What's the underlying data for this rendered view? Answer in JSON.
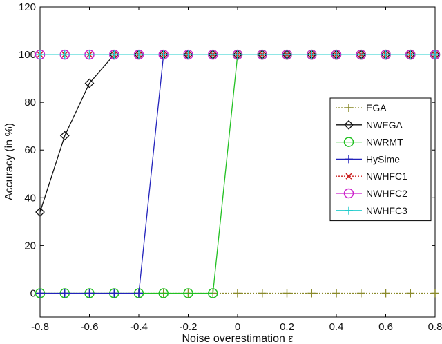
{
  "chart_data": {
    "type": "line",
    "title": "",
    "xlabel": "Noise overestimation ε",
    "ylabel": "Accuracy (in %)",
    "xlim": [
      -0.8,
      0.8
    ],
    "ylim": [
      -10,
      120
    ],
    "xticks": [
      "-0.8",
      "-0.6",
      "-0.4",
      "-0.2",
      "0",
      "0.2",
      "0.4",
      "0.6",
      "0.8"
    ],
    "yticks": [
      "0",
      "20",
      "40",
      "60",
      "80",
      "100",
      "120"
    ],
    "xtick_values": [
      -0.8,
      -0.6,
      -0.4,
      -0.2,
      0,
      0.2,
      0.4,
      0.6,
      0.8
    ],
    "ytick_values": [
      0,
      20,
      40,
      60,
      80,
      100,
      120
    ],
    "grid": false,
    "legend_position": "right",
    "x": [
      -0.8,
      -0.7,
      -0.6,
      -0.5,
      -0.4,
      -0.3,
      -0.2,
      -0.1,
      0,
      0.1,
      0.2,
      0.3,
      0.4,
      0.5,
      0.6,
      0.7,
      0.8
    ],
    "series": [
      {
        "name": "EGA",
        "color": "#8a8a2a",
        "dash": "2,2",
        "marker": "plus",
        "values": [
          0,
          0,
          0,
          0,
          0,
          0,
          0,
          0,
          0,
          0,
          0,
          0,
          0,
          0,
          0,
          0,
          0
        ]
      },
      {
        "name": "NWEGA",
        "color": "#111111",
        "dash": "",
        "marker": "diamond",
        "values": [
          34,
          66,
          88,
          100,
          100,
          100,
          100,
          100,
          100,
          100,
          100,
          100,
          100,
          100,
          100,
          100,
          100
        ]
      },
      {
        "name": "NWRMT",
        "color": "#22c022",
        "dash": "",
        "marker": "circle",
        "values": [
          0,
          0,
          0,
          0,
          0,
          0,
          0,
          0,
          100,
          100,
          100,
          100,
          100,
          100,
          100,
          100,
          100
        ]
      },
      {
        "name": "HySime",
        "color": "#2222bb",
        "dash": "",
        "marker": "plus",
        "values": [
          0,
          0,
          0,
          0,
          0,
          100,
          100,
          100,
          100,
          100,
          100,
          100,
          100,
          100,
          100,
          100,
          100
        ]
      },
      {
        "name": "NWHFC1",
        "color": "#cc2222",
        "dash": "2,2",
        "marker": "x",
        "values": [
          100,
          100,
          100,
          100,
          100,
          100,
          100,
          100,
          100,
          100,
          100,
          100,
          100,
          100,
          100,
          100,
          100
        ]
      },
      {
        "name": "NWHFC2",
        "color": "#cc22cc",
        "dash": "",
        "marker": "circle",
        "values": [
          100,
          100,
          100,
          100,
          100,
          100,
          100,
          100,
          100,
          100,
          100,
          100,
          100,
          100,
          100,
          100,
          100
        ]
      },
      {
        "name": "NWHFC3",
        "color": "#22cccc",
        "dash": "",
        "marker": "plus",
        "values": [
          100,
          100,
          100,
          100,
          100,
          100,
          100,
          100,
          100,
          100,
          100,
          100,
          100,
          100,
          100,
          100,
          100
        ]
      }
    ]
  }
}
